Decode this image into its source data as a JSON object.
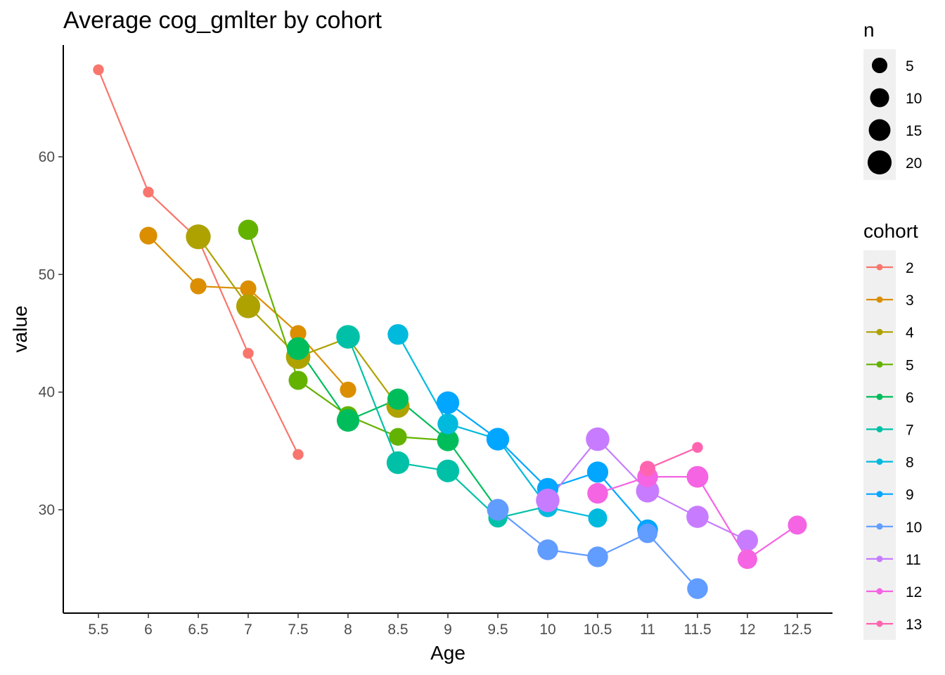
{
  "chart_data": {
    "type": "scatter",
    "title": "Average cog_gmlter by cohort",
    "xlabel": "Age",
    "ylabel": "value",
    "xlim": [
      5.5,
      12.5
    ],
    "ylim": [
      22,
      70
    ],
    "x_ticks": [
      "5.5",
      "6",
      "6.5",
      "7",
      "7.5",
      "8",
      "8.5",
      "9",
      "9.5",
      "10",
      "10.5",
      "11",
      "11.5",
      "12",
      "12.5"
    ],
    "y_ticks": [
      "30",
      "40",
      "50",
      "60"
    ],
    "grid": false,
    "size_legend": {
      "title": "n",
      "entries": [
        {
          "label": "5",
          "n": 5
        },
        {
          "label": "10",
          "n": 10
        },
        {
          "label": "15",
          "n": 15
        },
        {
          "label": "20",
          "n": 20
        }
      ]
    },
    "color_legend": {
      "title": "cohort",
      "placement": "right"
    },
    "series": [
      {
        "name": "2",
        "color": "#F8766D",
        "points": [
          {
            "x": 5.5,
            "y": 67.4,
            "n": 1
          },
          {
            "x": 6,
            "y": 57.0,
            "n": 1
          },
          {
            "x": 6.5,
            "y": 53.0,
            "n": 1
          },
          {
            "x": 7,
            "y": 43.3,
            "n": 1
          },
          {
            "x": 7.5,
            "y": 34.7,
            "n": 1
          }
        ]
      },
      {
        "name": "3",
        "color": "#DB8E00",
        "points": [
          {
            "x": 6,
            "y": 53.3,
            "n": 8
          },
          {
            "x": 6.5,
            "y": 49.0,
            "n": 6
          },
          {
            "x": 7,
            "y": 48.8,
            "n": 6
          },
          {
            "x": 7.5,
            "y": 45.0,
            "n": 6
          },
          {
            "x": 8,
            "y": 40.2,
            "n": 6
          }
        ]
      },
      {
        "name": "4",
        "color": "#AEA200",
        "points": [
          {
            "x": 6.5,
            "y": 53.2,
            "n": 22
          },
          {
            "x": 7,
            "y": 47.3,
            "n": 20
          },
          {
            "x": 7.5,
            "y": 43.0,
            "n": 21
          },
          {
            "x": 8,
            "y": 44.6,
            "n": 14
          },
          {
            "x": 8.5,
            "y": 38.8,
            "n": 18
          }
        ]
      },
      {
        "name": "5",
        "color": "#64B200",
        "points": [
          {
            "x": 7,
            "y": 53.8,
            "n": 12
          },
          {
            "x": 7.5,
            "y": 41.0,
            "n": 10
          },
          {
            "x": 8,
            "y": 38.0,
            "n": 10
          },
          {
            "x": 8.5,
            "y": 36.2,
            "n": 8
          },
          {
            "x": 9,
            "y": 35.9,
            "n": 10
          }
        ]
      },
      {
        "name": "6",
        "color": "#00BD5C",
        "points": [
          {
            "x": 7.5,
            "y": 43.7,
            "n": 17
          },
          {
            "x": 8,
            "y": 37.6,
            "n": 17
          },
          {
            "x": 8.5,
            "y": 39.4,
            "n": 14
          },
          {
            "x": 9,
            "y": 35.9,
            "n": 15
          },
          {
            "x": 9.5,
            "y": 30.0,
            "n": 10
          }
        ]
      },
      {
        "name": "7",
        "color": "#00C1A7",
        "points": [
          {
            "x": 8,
            "y": 44.7,
            "n": 19
          },
          {
            "x": 8.5,
            "y": 34.0,
            "n": 17
          },
          {
            "x": 9,
            "y": 33.3,
            "n": 17
          },
          {
            "x": 9.5,
            "y": 29.3,
            "n": 10
          },
          {
            "x": 10,
            "y": 30.3,
            "n": 11
          }
        ]
      },
      {
        "name": "8",
        "color": "#00BADE",
        "points": [
          {
            "x": 8.5,
            "y": 44.9,
            "n": 13
          },
          {
            "x": 9,
            "y": 37.3,
            "n": 13
          },
          {
            "x": 9.5,
            "y": 36.0,
            "n": 13
          },
          {
            "x": 10,
            "y": 30.2,
            "n": 11
          },
          {
            "x": 10.5,
            "y": 29.3,
            "n": 10
          }
        ]
      },
      {
        "name": "9",
        "color": "#00A6FF",
        "points": [
          {
            "x": 9,
            "y": 39.1,
            "n": 17
          },
          {
            "x": 9.5,
            "y": 36.0,
            "n": 17
          },
          {
            "x": 10,
            "y": 31.8,
            "n": 14
          },
          {
            "x": 10.5,
            "y": 33.2,
            "n": 14
          },
          {
            "x": 11,
            "y": 28.3,
            "n": 13
          }
        ]
      },
      {
        "name": "10",
        "color": "#619CFF",
        "points": [
          {
            "x": 9.5,
            "y": 30.0,
            "n": 15
          },
          {
            "x": 10,
            "y": 26.6,
            "n": 13
          },
          {
            "x": 10.5,
            "y": 26.0,
            "n": 13
          },
          {
            "x": 11,
            "y": 28.0,
            "n": 11
          },
          {
            "x": 11.5,
            "y": 23.3,
            "n": 13
          }
        ]
      },
      {
        "name": "11",
        "color": "#C77CFF",
        "points": [
          {
            "x": 10,
            "y": 30.8,
            "n": 19
          },
          {
            "x": 10.5,
            "y": 36.0,
            "n": 19
          },
          {
            "x": 11,
            "y": 31.6,
            "n": 18
          },
          {
            "x": 11.5,
            "y": 29.4,
            "n": 16
          },
          {
            "x": 12,
            "y": 27.4,
            "n": 14
          }
        ]
      },
      {
        "name": "12",
        "color": "#F564E3",
        "points": [
          {
            "x": 10.5,
            "y": 31.4,
            "n": 13
          },
          {
            "x": 11,
            "y": 32.8,
            "n": 13
          },
          {
            "x": 11.5,
            "y": 32.8,
            "n": 15
          },
          {
            "x": 12,
            "y": 25.8,
            "n": 11
          },
          {
            "x": 12.5,
            "y": 28.7,
            "n": 10
          }
        ]
      },
      {
        "name": "13",
        "color": "#FF64B0",
        "points": [
          {
            "x": 11,
            "y": 33.5,
            "n": 5
          },
          {
            "x": 11.5,
            "y": 35.3,
            "n": 1
          }
        ]
      }
    ]
  }
}
